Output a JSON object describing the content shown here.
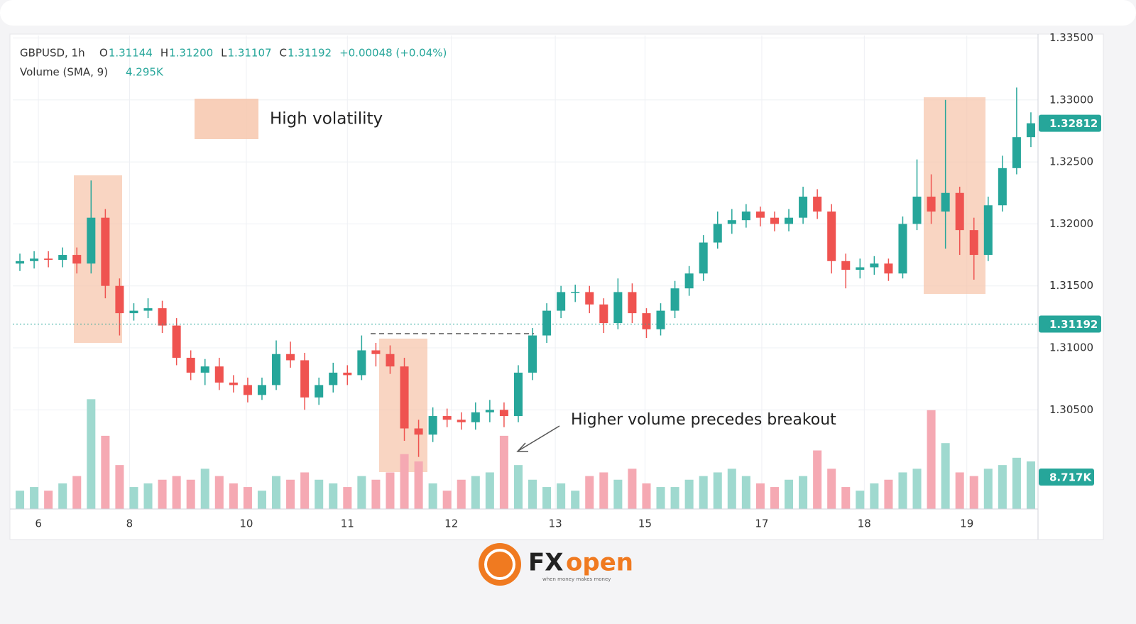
{
  "chart_data": {
    "type": "candlestick",
    "header": {
      "symbol": "GBPUSD, 1h",
      "ohlc": [
        {
          "key": "O",
          "value": "1.31144"
        },
        {
          "key": "H",
          "value": "1.31200"
        },
        {
          "key": "L",
          "value": "1.31107"
        },
        {
          "key": "C",
          "value": "1.31192"
        }
      ],
      "change": "+0.00048 (+0.04%)",
      "volume_name": "Volume (SMA, 9)",
      "volume_value": "4.295K"
    },
    "annotations": [
      "High volatility",
      "Higher volume precedes breakout"
    ],
    "open": [
      1.3168,
      1.317,
      1.3172,
      1.3171,
      1.3175,
      1.3168,
      1.3205,
      1.315,
      1.3128,
      1.313,
      1.3132,
      1.3118,
      1.3092,
      1.308,
      1.3085,
      1.3072,
      1.307,
      1.3062,
      1.307,
      1.3095,
      1.309,
      1.306,
      1.307,
      1.308,
      1.3078,
      1.3098,
      1.3095,
      1.3085,
      1.3035,
      1.303,
      1.3045,
      1.3042,
      1.304,
      1.3048,
      1.305,
      1.3045,
      1.308,
      1.311,
      1.313,
      1.3145,
      1.3145,
      1.3135,
      1.312,
      1.3145,
      1.3128,
      1.3115,
      1.313,
      1.3148,
      1.316,
      1.3185,
      1.32,
      1.3203,
      1.321,
      1.3205,
      1.32,
      1.3205,
      1.3222,
      1.321,
      1.317,
      1.3163,
      1.3165,
      1.3168,
      1.316,
      1.32,
      1.3222,
      1.321,
      1.3225,
      1.3195,
      1.3175,
      1.3215,
      1.3245,
      1.327
    ],
    "high": [
      1.3176,
      1.3178,
      1.3178,
      1.3181,
      1.3181,
      1.3235,
      1.3212,
      1.3156,
      1.3136,
      1.314,
      1.3138,
      1.3124,
      1.3098,
      1.3091,
      1.3092,
      1.3078,
      1.3076,
      1.3076,
      1.3106,
      1.3105,
      1.3096,
      1.3076,
      1.3088,
      1.3086,
      1.311,
      1.3104,
      1.3102,
      1.3092,
      1.3042,
      1.3052,
      1.3051,
      1.3048,
      1.3056,
      1.3058,
      1.3056,
      1.3086,
      1.3116,
      1.3136,
      1.315,
      1.3151,
      1.315,
      1.314,
      1.3156,
      1.3152,
      1.3132,
      1.3136,
      1.3154,
      1.3166,
      1.3191,
      1.321,
      1.3212,
      1.3216,
      1.3214,
      1.321,
      1.3212,
      1.323,
      1.3228,
      1.3216,
      1.3176,
      1.3172,
      1.3174,
      1.3172,
      1.3206,
      1.3252,
      1.324,
      1.33,
      1.323,
      1.3205,
      1.3222,
      1.3255,
      1.331,
      1.329
    ],
    "low": [
      1.3162,
      1.3164,
      1.3165,
      1.3165,
      1.316,
      1.316,
      1.314,
      1.311,
      1.3122,
      1.3124,
      1.3112,
      1.3086,
      1.3074,
      1.307,
      1.3066,
      1.3064,
      1.3056,
      1.3058,
      1.3066,
      1.3084,
      1.305,
      1.3054,
      1.3064,
      1.307,
      1.3074,
      1.3085,
      1.3079,
      1.3025,
      1.3012,
      1.3024,
      1.3036,
      1.3034,
      1.3034,
      1.304,
      1.3036,
      1.304,
      1.3074,
      1.3104,
      1.3124,
      1.3137,
      1.3128,
      1.3112,
      1.3115,
      1.312,
      1.3108,
      1.311,
      1.3124,
      1.3142,
      1.3154,
      1.318,
      1.3192,
      1.3197,
      1.3198,
      1.3194,
      1.3194,
      1.32,
      1.3204,
      1.316,
      1.3148,
      1.3156,
      1.3159,
      1.3154,
      1.3156,
      1.3195,
      1.32,
      1.318,
      1.3175,
      1.3155,
      1.317,
      1.321,
      1.324,
      1.3262
    ],
    "close": [
      1.317,
      1.3172,
      1.3171,
      1.3175,
      1.3168,
      1.3205,
      1.315,
      1.3128,
      1.313,
      1.3132,
      1.3118,
      1.3092,
      1.308,
      1.3085,
      1.3072,
      1.307,
      1.3062,
      1.307,
      1.3095,
      1.309,
      1.306,
      1.307,
      1.308,
      1.3078,
      1.3098,
      1.3095,
      1.3085,
      1.3035,
      1.303,
      1.3045,
      1.3042,
      1.304,
      1.3048,
      1.305,
      1.3045,
      1.308,
      1.311,
      1.313,
      1.3145,
      1.3145,
      1.3135,
      1.312,
      1.3145,
      1.3128,
      1.3115,
      1.313,
      1.3148,
      1.316,
      1.3185,
      1.32,
      1.3203,
      1.321,
      1.3205,
      1.32,
      1.3205,
      1.3222,
      1.321,
      1.317,
      1.3163,
      1.3165,
      1.3168,
      1.316,
      1.32,
      1.3222,
      1.321,
      1.3225,
      1.3195,
      1.3175,
      1.3215,
      1.3245,
      1.327,
      1.32812
    ],
    "volume": [
      5,
      6,
      5,
      7,
      9,
      30,
      20,
      12,
      6,
      7,
      8,
      9,
      8,
      11,
      9,
      7,
      6,
      5,
      9,
      8,
      10,
      8,
      7,
      6,
      9,
      8,
      10,
      15,
      13,
      7,
      5,
      8,
      9,
      10,
      20,
      12,
      8,
      6,
      7,
      5,
      9,
      10,
      8,
      11,
      7,
      6,
      6,
      8,
      9,
      10,
      11,
      9,
      7,
      6,
      8,
      9,
      16,
      11,
      6,
      5,
      7,
      8,
      10,
      11,
      27,
      18,
      10,
      9,
      11,
      12,
      14,
      13
    ],
    "up_color": "#26a69a",
    "down_color": "#ef5350",
    "up_volume_color": "#9fd9cf",
    "down_volume_color": "#f5a9b3",
    "xlim": [
      0,
      72
    ],
    "xticks": [
      {
        "value": 1.8,
        "label": "6"
      },
      {
        "value": 8.2,
        "label": "8"
      },
      {
        "value": 16.4,
        "label": "10"
      },
      {
        "value": 23.5,
        "label": "11"
      },
      {
        "value": 30.8,
        "label": "12"
      },
      {
        "value": 38.1,
        "label": "13"
      },
      {
        "value": 44.4,
        "label": "15"
      },
      {
        "value": 52.6,
        "label": "17"
      },
      {
        "value": 59.8,
        "label": "18"
      },
      {
        "value": 67.0,
        "label": "19"
      }
    ],
    "ylim": [
      1.297,
      1.3352
    ],
    "yticks": [
      {
        "value": 1.335,
        "label": "1.33500"
      },
      {
        "value": 1.33,
        "label": "1.33000"
      },
      {
        "value": 1.325,
        "label": "1.32500"
      },
      {
        "value": 1.32,
        "label": "1.32000"
      },
      {
        "value": 1.315,
        "label": "1.31500"
      },
      {
        "value": 1.31,
        "label": "1.31000"
      },
      {
        "value": 1.305,
        "label": "1.30500"
      }
    ],
    "volume_lim": [
      0,
      45
    ],
    "last_price": 1.32812,
    "current_line": 1.31192,
    "volume_marker": {
      "value": 8.717,
      "label": "8.717K"
    },
    "grid": true,
    "logo": {
      "fx": "FX",
      "open": "open",
      "tagline": "when money makes money"
    }
  }
}
